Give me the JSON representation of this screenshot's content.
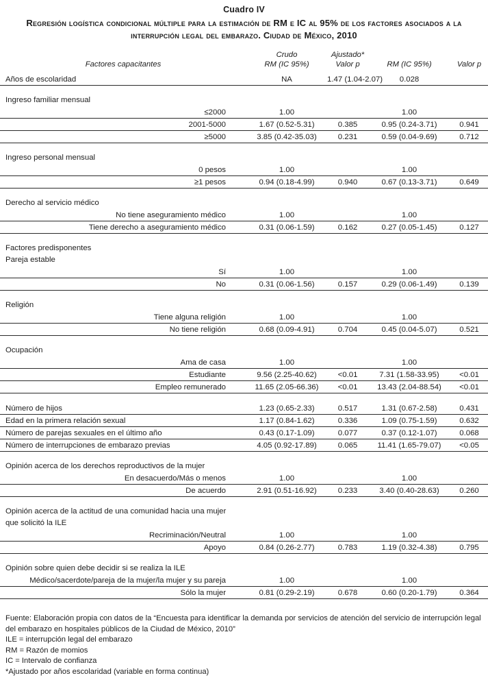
{
  "title": "Cuadro IV",
  "subtitle": "Regresión logística condicional múltiple para la estimación de RM e IC al 95% de los factores asociados a la interrupción legal del embarazo. Ciudad de México, 2010",
  "header": {
    "factor_col": "Factores capacitantes",
    "crudo": "Crudo",
    "ajustado": "Ajustado*",
    "rm_ic_1": "RM (IC 95%)",
    "valor_p_1": "Valor p",
    "rm_ic_2": "RM (IC 95%)",
    "valor_p_2": "Valor p"
  },
  "table": {
    "blocks": [
      {
        "labels": [],
        "rows": [
          {
            "label": "Años de escolaridad",
            "align": "left",
            "cells": [
              "NA",
              "1.47 (1.04-2.07)",
              "0.028",
              ""
            ]
          }
        ]
      },
      {
        "labels": [
          "Ingreso familiar mensual"
        ],
        "rows": [
          {
            "label": "≤2000",
            "align": "right",
            "cells": [
              "1.00",
              "",
              "1.00",
              ""
            ]
          },
          {
            "label": "2001-5000",
            "align": "right",
            "cells": [
              "1.67 (0.52-5.31)",
              "0.385",
              "0.95 (0.24-3.71)",
              "0.941"
            ]
          },
          {
            "label": "≥5000",
            "align": "right",
            "cells": [
              "3.85 (0.42-35.03)",
              "0.231",
              "0.59 (0.04-9.69)",
              "0.712"
            ]
          }
        ]
      },
      {
        "labels": [
          "Ingreso personal mensual"
        ],
        "rows": [
          {
            "label": "0 pesos",
            "align": "right",
            "cells": [
              "1.00",
              "",
              "1.00",
              ""
            ]
          },
          {
            "label": "≥1 pesos",
            "align": "right",
            "cells": [
              "0.94 (0.18-4.99)",
              "0.940",
              "0.67 (0.13-3.71)",
              "0.649"
            ]
          }
        ]
      },
      {
        "labels": [
          "Derecho al servicio médico"
        ],
        "rows": [
          {
            "label": "No tiene aseguramiento médico",
            "align": "right",
            "cells": [
              "1.00",
              "",
              "1.00",
              ""
            ]
          },
          {
            "label": "Tiene derecho a aseguramiento médico",
            "align": "right",
            "cells": [
              "0.31 (0.06-1.59)",
              "0.162",
              "0.27 (0.05-1.45)",
              "0.127"
            ]
          }
        ]
      },
      {
        "labels": [
          "Factores predisponentes",
          "Pareja estable"
        ],
        "rows": [
          {
            "label": "Sí",
            "align": "right",
            "cells": [
              "1.00",
              "",
              "1.00",
              ""
            ]
          },
          {
            "label": "No",
            "align": "right",
            "cells": [
              "0.31 (0.06-1.56)",
              "0.157",
              "0.29 (0.06-1.49)",
              "0.139"
            ]
          }
        ]
      },
      {
        "labels": [
          "Religión"
        ],
        "rows": [
          {
            "label": "Tiene alguna religión",
            "align": "right",
            "cells": [
              "1.00",
              "",
              "1.00",
              ""
            ]
          },
          {
            "label": "No tiene religión",
            "align": "right",
            "cells": [
              "0.68 (0.09-4.91)",
              "0.704",
              "0.45 (0.04-5.07)",
              "0.521"
            ]
          }
        ]
      },
      {
        "labels": [
          "Ocupación"
        ],
        "rows": [
          {
            "label": "Ama de casa",
            "align": "right",
            "cells": [
              "1.00",
              "",
              "1.00",
              ""
            ]
          },
          {
            "label": "Estudiante",
            "align": "right",
            "cells": [
              "9.56 (2.25-40.62)",
              "<0.01",
              "7.31 (1.58-33.95)",
              "<0.01"
            ]
          },
          {
            "label": "Empleo remunerado",
            "align": "right",
            "cells": [
              "11.65 (2.05-66.36)",
              "<0.01",
              "13.43 (2.04-88.54)",
              "<0.01"
            ]
          }
        ]
      },
      {
        "labels": [],
        "rows": [
          {
            "label": "Número de hijos",
            "align": "left",
            "cells": [
              "1.23 (0.65-2.33)",
              "0.517",
              "1.31 (0.67-2.58)",
              "0.431"
            ]
          },
          {
            "label": "Edad en la primera relación sexual",
            "align": "left",
            "cells": [
              "1.17 (0.84-1.62)",
              "0.336",
              "1.09 (0.75-1.59)",
              "0.632"
            ]
          },
          {
            "label": "Número de parejas sexuales en el último año",
            "align": "left",
            "cells": [
              "0.43 (0.17-1.09)",
              "0.077",
              "0.37 (0.12-1.07)",
              "0.068"
            ]
          },
          {
            "label": "Número de interrupciones de embarazo previas",
            "align": "left",
            "cells": [
              "4.05 (0.92-17.89)",
              "0.065",
              "11.41 (1.65-79.07)",
              "<0.05"
            ]
          }
        ]
      },
      {
        "labels": [
          "Opinión acerca de los derechos reproductivos de la mujer"
        ],
        "rows": [
          {
            "label": "En desacuerdo/Más o menos",
            "align": "right",
            "cells": [
              "1.00",
              "",
              "1.00",
              ""
            ]
          },
          {
            "label": "De acuerdo",
            "align": "right",
            "cells": [
              "2.91 (0.51-16.92)",
              "0.233",
              "3.40 (0.40-28.63)",
              "0.260"
            ]
          }
        ]
      },
      {
        "labels": [
          "Opinión acerca de la actitud de una comunidad hacia una mujer",
          "que solicitó la ILE"
        ],
        "rows": [
          {
            "label": "Recriminación/Neutral",
            "align": "right",
            "cells": [
              "1.00",
              "",
              "1.00",
              ""
            ]
          },
          {
            "label": "Apoyo",
            "align": "right",
            "cells": [
              "0.84 (0.26-2.77)",
              "0.783",
              "1.19 (0.32-4.38)",
              "0.795"
            ]
          }
        ]
      },
      {
        "labels": [
          "Opinión sobre quien debe decidir si se realiza la ILE"
        ],
        "rows": [
          {
            "label": "Médico/sacerdote/pareja de la mujer/la mujer y su pareja",
            "align": "right",
            "cells": [
              "1.00",
              "",
              "1.00",
              ""
            ]
          },
          {
            "label": "Sólo la mujer",
            "align": "right",
            "cells": [
              "0.81 (0.29-2.19)",
              "0.678",
              "0.60 (0.20-1.79)",
              "0.364"
            ]
          }
        ]
      }
    ]
  },
  "footnotes": [
    "Fuente: Elaboración propia con datos de la “Encuesta para identificar la demanda por servicios de atención del servicio de interrupción legal del embarazo en hospitales públicos de la Ciudad de México, 2010”",
    "ILE = interrupción legal del embarazo",
    "RM = Razón de momios",
    "IC = Intervalo de confianza",
    "*Ajustado por años escolaridad (variable en forma continua)"
  ]
}
